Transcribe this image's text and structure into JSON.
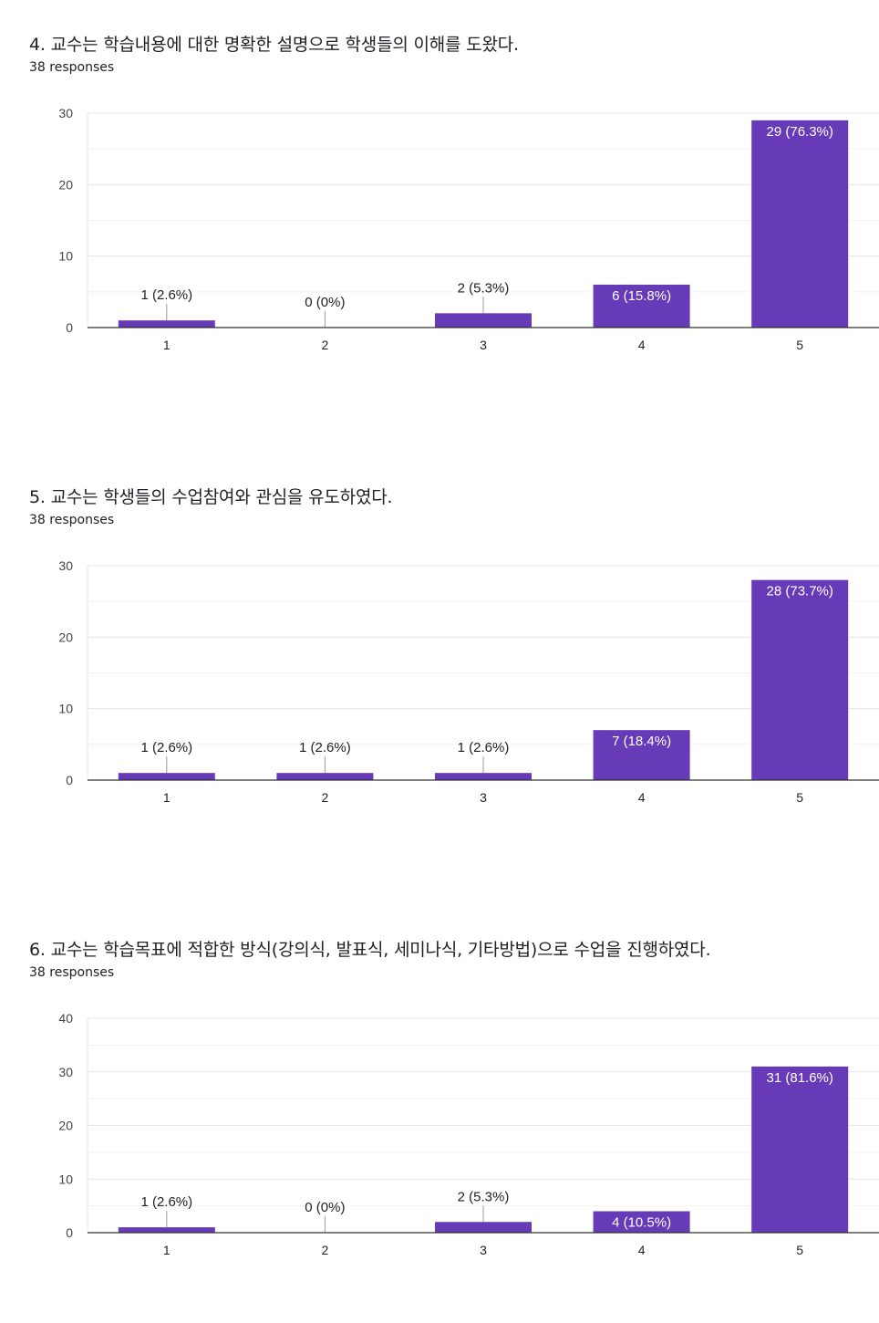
{
  "questions": [
    {
      "title": "4. 교수는 학습내용에 대한 명확한 설명으로 학생들의 이해를 도왔다.",
      "responses": "38 responses",
      "chart_data": {
        "type": "bar",
        "categories": [
          "1",
          "2",
          "3",
          "4",
          "5"
        ],
        "values": [
          1,
          0,
          2,
          6,
          29
        ],
        "data_labels": [
          "1 (2.6%)",
          "0 (0%)",
          "2 (5.3%)",
          "6 (15.8%)",
          "29 (76.3%)"
        ],
        "y_ticks": [
          0,
          10,
          20,
          30
        ],
        "ylim": [
          0,
          30
        ],
        "grid": true,
        "bar_color": "#673ab7"
      }
    },
    {
      "title": "5. 교수는 학생들의 수업참여와 관심을 유도하였다.",
      "responses": "38 responses",
      "chart_data": {
        "type": "bar",
        "categories": [
          "1",
          "2",
          "3",
          "4",
          "5"
        ],
        "values": [
          1,
          1,
          1,
          7,
          28
        ],
        "data_labels": [
          "1 (2.6%)",
          "1 (2.6%)",
          "1 (2.6%)",
          "7 (18.4%)",
          "28 (73.7%)"
        ],
        "y_ticks": [
          0,
          10,
          20,
          30
        ],
        "ylim": [
          0,
          30
        ],
        "grid": true,
        "bar_color": "#673ab7"
      }
    },
    {
      "title": "6. 교수는 학습목표에 적합한 방식(강의식, 발표식, 세미나식, 기타방법)으로 수업을 진행하였다.",
      "responses": "38 responses",
      "chart_data": {
        "type": "bar",
        "categories": [
          "1",
          "2",
          "3",
          "4",
          "5"
        ],
        "values": [
          1,
          0,
          2,
          4,
          31
        ],
        "data_labels": [
          "1 (2.6%)",
          "0 (0%)",
          "2 (5.3%)",
          "4 (10.5%)",
          "31 (81.6%)"
        ],
        "y_ticks": [
          0,
          10,
          20,
          30,
          40
        ],
        "ylim": [
          0,
          40
        ],
        "grid": true,
        "bar_color": "#673ab7"
      }
    }
  ]
}
